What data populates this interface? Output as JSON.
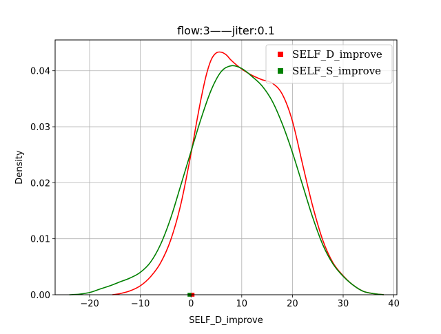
{
  "chart_data": {
    "type": "line",
    "title": "flow:3——jiter:0.1",
    "xlabel": "SELF_D_improve",
    "ylabel": "Density",
    "xlim": [
      -26.8,
      40.6
    ],
    "ylim": [
      0,
      0.0455
    ],
    "xticks": [
      -20,
      -10,
      0,
      10,
      20,
      30,
      40
    ],
    "xtick_labels": [
      "−20",
      "−10",
      "0",
      "10",
      "20",
      "30",
      "40"
    ],
    "yticks": [
      0,
      0.01,
      0.02,
      0.03,
      0.04
    ],
    "ytick_labels": [
      "0.00",
      "0.01",
      "0.02",
      "0.03",
      "0.04"
    ],
    "grid": true,
    "legend_position": "top-right",
    "series": [
      {
        "name": "SELF_D_improve",
        "color": "#ff0000",
        "x": [
          -15.5,
          -14,
          -12,
          -10,
          -8,
          -6,
          -4,
          -2,
          0,
          1,
          2,
          3,
          4,
          5,
          6,
          7,
          8,
          10,
          12,
          14,
          16,
          18,
          20,
          22,
          24,
          26,
          28,
          30,
          32,
          34,
          36,
          38
        ],
        "y": [
          0.0,
          0.0002,
          0.0007,
          0.0016,
          0.0032,
          0.0057,
          0.0098,
          0.0162,
          0.0252,
          0.0303,
          0.0351,
          0.0392,
          0.042,
          0.0432,
          0.0433,
          0.0428,
          0.0418,
          0.0403,
          0.0392,
          0.0384,
          0.0378,
          0.0358,
          0.031,
          0.0233,
          0.0158,
          0.0097,
          0.0057,
          0.0034,
          0.0017,
          0.0006,
          0.0002,
          0.0
        ]
      },
      {
        "name": "SELF_S_improve",
        "color": "#008000",
        "x": [
          -24,
          -22,
          -20,
          -18,
          -16,
          -14,
          -12,
          -10,
          -8,
          -6,
          -4,
          -2,
          0,
          2,
          4,
          6,
          8,
          10,
          12,
          14,
          16,
          18,
          20,
          22,
          24,
          26,
          28,
          30,
          32,
          34,
          36,
          38
        ],
        "y": [
          0.0,
          0.0001,
          0.0004,
          0.001,
          0.0016,
          0.0023,
          0.003,
          0.004,
          0.0058,
          0.009,
          0.0137,
          0.0196,
          0.0256,
          0.0315,
          0.0366,
          0.0399,
          0.0409,
          0.0404,
          0.039,
          0.0373,
          0.0346,
          0.0305,
          0.0254,
          0.0196,
          0.0138,
          0.0089,
          0.0055,
          0.0033,
          0.0017,
          0.0006,
          0.0002,
          0.0
        ]
      }
    ],
    "markers": [
      {
        "series": "SELF_D_improve",
        "x": 0.3,
        "y": 0,
        "color": "#ff0000"
      },
      {
        "series": "SELF_S_improve",
        "x": -0.3,
        "y": 0,
        "color": "#008000"
      }
    ]
  }
}
